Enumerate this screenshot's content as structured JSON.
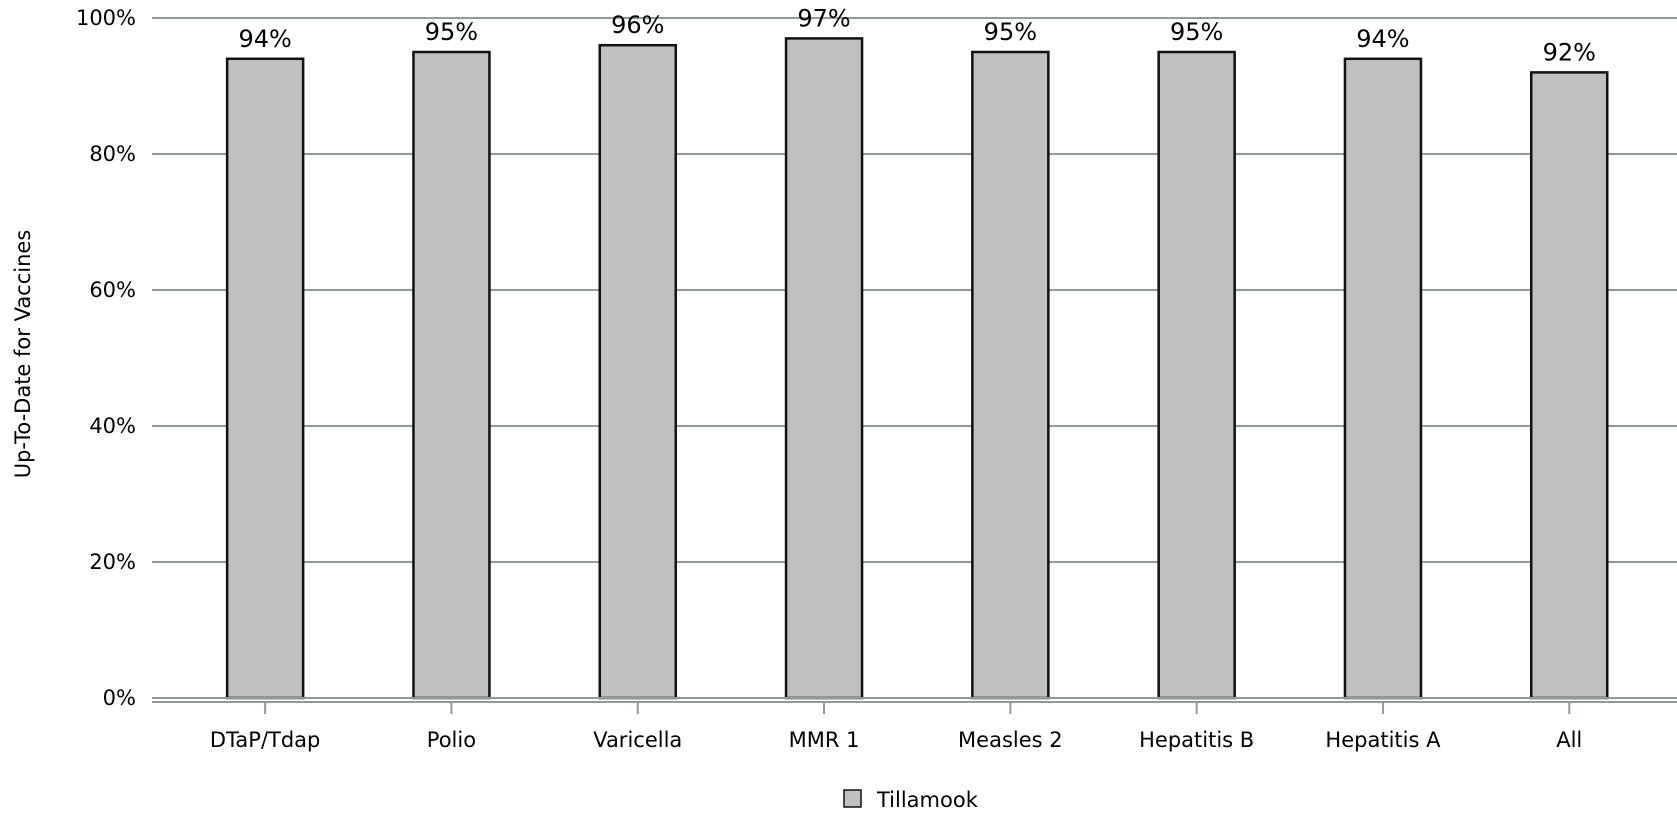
{
  "chart_data": {
    "type": "bar",
    "categories": [
      "DTaP/Tdap",
      "Polio",
      "Varicella",
      "MMR 1",
      "Measles 2",
      "Hepatitis B",
      "Hepatitis A",
      "All"
    ],
    "series": [
      {
        "name": "Tillamook",
        "values": [
          94,
          95,
          96,
          97,
          95,
          95,
          94,
          92
        ],
        "data_labels": [
          "94%",
          "95%",
          "96%",
          "97%",
          "95%",
          "95%",
          "94%",
          "92%"
        ]
      }
    ],
    "xlabel": "",
    "ylabel": "Up-To-Date for Vaccines",
    "ylim": [
      0,
      100
    ],
    "yticks": [
      0,
      20,
      40,
      60,
      80,
      100
    ],
    "ytick_labels": [
      "0%",
      "20%",
      "40%",
      "60%",
      "80%",
      "100%"
    ],
    "grid": true,
    "legend_position": "bottom-center",
    "colors": {
      "bar_fill": "#c0c0c0",
      "bar_stroke": "#111111",
      "gridline": "#8f9a9a",
      "axis": "#8f9a9a"
    }
  }
}
